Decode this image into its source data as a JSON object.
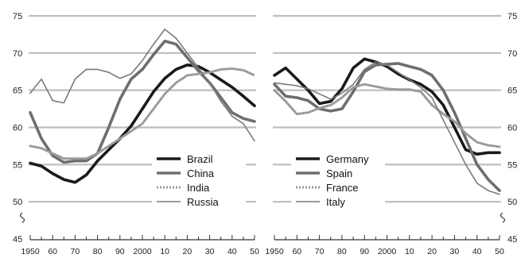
{
  "chart_data": [
    {
      "type": "line",
      "panel": "left",
      "xlim": [
        1950,
        2050
      ],
      "ylim": [
        45,
        75
      ],
      "yticks": [
        45,
        50,
        55,
        60,
        65,
        70,
        75
      ],
      "xtick_labels": [
        "1950",
        "60",
        "70",
        "80",
        "90",
        "2000",
        "10",
        "20",
        "30",
        "40",
        "50"
      ],
      "grid": true,
      "legend_position": "bottom-right",
      "series": [
        {
          "name": "Brazil",
          "color": "#1a1a1a",
          "style": "solid-thick",
          "x": [
            1950,
            1955,
            1960,
            1965,
            1970,
            1975,
            1980,
            1985,
            1990,
            1995,
            2000,
            2005,
            2010,
            2015,
            2020,
            2025,
            2030,
            2035,
            2040,
            2045,
            2050
          ],
          "y": [
            55.2,
            54.8,
            53.8,
            53.0,
            52.6,
            53.6,
            55.5,
            57.0,
            58.5,
            60.2,
            62.5,
            64.8,
            66.6,
            67.8,
            68.4,
            68.2,
            67.4,
            66.4,
            65.4,
            64.2,
            62.9
          ]
        },
        {
          "name": "China",
          "color": "#6e6e6e",
          "style": "solid-thick",
          "x": [
            1950,
            1955,
            1960,
            1965,
            1970,
            1975,
            1980,
            1985,
            1990,
            1995,
            2000,
            2005,
            2010,
            2015,
            2020,
            2025,
            2030,
            2035,
            2040,
            2045,
            2050
          ],
          "y": [
            62.0,
            58.5,
            56.2,
            55.3,
            55.5,
            55.5,
            56.5,
            60.0,
            63.8,
            66.5,
            67.8,
            69.8,
            71.6,
            71.2,
            69.4,
            67.6,
            66.0,
            64.0,
            62.0,
            61.2,
            60.8
          ]
        },
        {
          "name": "India",
          "color": "#9a9a9a",
          "style": "dotted",
          "x": [
            1950,
            1955,
            1960,
            1965,
            1970,
            1975,
            1980,
            1985,
            1990,
            1995,
            2000,
            2005,
            2010,
            2015,
            2020,
            2025,
            2030,
            2035,
            2040,
            2045,
            2050
          ],
          "y": [
            57.5,
            57.2,
            56.5,
            55.8,
            55.8,
            55.8,
            56.5,
            57.5,
            58.5,
            59.5,
            60.5,
            62.5,
            64.5,
            66.0,
            67.0,
            67.2,
            67.4,
            67.8,
            67.9,
            67.7,
            67.0
          ]
        },
        {
          "name": "Russia",
          "color": "#7a7a7a",
          "style": "solid-thin",
          "x": [
            1950,
            1955,
            1960,
            1965,
            1970,
            1975,
            1980,
            1985,
            1990,
            1995,
            2000,
            2005,
            2010,
            2015,
            2020,
            2025,
            2030,
            2035,
            2040,
            2045,
            2050
          ],
          "y": [
            64.6,
            66.5,
            63.6,
            63.3,
            66.5,
            67.8,
            67.8,
            67.4,
            66.6,
            67.2,
            69.0,
            71.2,
            73.2,
            72.0,
            70.0,
            68.0,
            66.0,
            63.5,
            61.5,
            60.5,
            58.2
          ]
        }
      ]
    },
    {
      "type": "line",
      "panel": "right",
      "xlim": [
        1950,
        2050
      ],
      "ylim": [
        45,
        75
      ],
      "yticks": [
        45,
        50,
        55,
        60,
        65,
        70,
        75
      ],
      "xtick_labels": [
        "1950",
        "60",
        "70",
        "80",
        "90",
        "2000",
        "10",
        "20",
        "30",
        "40",
        "50"
      ],
      "grid": true,
      "legend_position": "bottom-right",
      "series": [
        {
          "name": "Germany",
          "color": "#1a1a1a",
          "style": "solid-thick",
          "x": [
            1950,
            1955,
            1960,
            1965,
            1970,
            1975,
            1980,
            1985,
            1990,
            1995,
            2000,
            2005,
            2010,
            2015,
            2020,
            2025,
            2030,
            2035,
            2040,
            2045,
            2050
          ],
          "y": [
            67.0,
            68.0,
            66.5,
            65.0,
            63.2,
            63.5,
            65.2,
            68.0,
            69.2,
            68.8,
            68.2,
            67.2,
            66.4,
            65.8,
            64.8,
            63.0,
            60.0,
            57.0,
            56.4,
            56.6,
            56.6
          ]
        },
        {
          "name": "Spain",
          "color": "#6e6e6e",
          "style": "solid-thick",
          "x": [
            1950,
            1955,
            1960,
            1965,
            1970,
            1975,
            1980,
            1985,
            1990,
            1995,
            2000,
            2005,
            2010,
            2015,
            2020,
            2025,
            2030,
            2035,
            2040,
            2045,
            2050
          ],
          "y": [
            65.8,
            64.2,
            64.0,
            63.6,
            62.5,
            62.2,
            62.5,
            64.8,
            67.5,
            68.4,
            68.5,
            68.6,
            68.2,
            67.8,
            67.0,
            65.0,
            62.0,
            58.5,
            55.0,
            53.0,
            51.5
          ]
        },
        {
          "name": "France",
          "color": "#9a9a9a",
          "style": "dotted",
          "x": [
            1950,
            1955,
            1960,
            1965,
            1970,
            1975,
            1980,
            1985,
            1990,
            1995,
            2000,
            2005,
            2010,
            2015,
            2020,
            2025,
            2030,
            2035,
            2040,
            2045,
            2050
          ],
          "y": [
            65.0,
            63.5,
            61.8,
            62.0,
            62.6,
            63.0,
            64.0,
            65.4,
            65.8,
            65.5,
            65.2,
            65.1,
            65.1,
            64.8,
            63.0,
            61.8,
            60.8,
            59.2,
            58.0,
            57.6,
            57.4
          ]
        },
        {
          "name": "Italy",
          "color": "#7a7a7a",
          "style": "solid-thin",
          "x": [
            1950,
            1955,
            1960,
            1965,
            1970,
            1975,
            1980,
            1985,
            1990,
            1995,
            2000,
            2005,
            2010,
            2015,
            2020,
            2025,
            2030,
            2035,
            2040,
            2045,
            2050
          ],
          "y": [
            66.0,
            65.8,
            65.6,
            65.2,
            64.5,
            63.8,
            64.6,
            65.8,
            67.8,
            68.8,
            68.4,
            67.4,
            66.4,
            65.4,
            64.0,
            61.0,
            58.0,
            55.0,
            52.5,
            51.5,
            51.0
          ]
        }
      ]
    }
  ]
}
